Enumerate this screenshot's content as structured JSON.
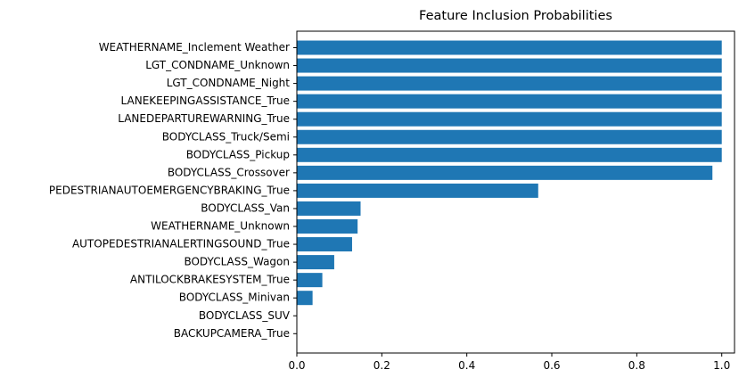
{
  "chart_data": {
    "type": "bar",
    "orientation": "horizontal",
    "title": "Feature Inclusion Probabilities",
    "xlabel": "",
    "ylabel": "",
    "xlim": [
      0,
      1.03
    ],
    "xticks": [
      "0.0",
      "0.2",
      "0.4",
      "0.6",
      "0.8",
      "1.0"
    ],
    "grid": false,
    "bar_color": "#1f77b4",
    "categories": [
      "WEATHERNAME_Inclement Weather",
      "LGT_CONDNAME_Unknown",
      "LGT_CONDNAME_Night",
      "LANEKEEPINGASSISTANCE_True",
      "LANEDEPARTUREWARNING_True",
      "BODYCLASS_Truck/Semi",
      "BODYCLASS_Pickup",
      "BODYCLASS_Crossover",
      "PEDESTRIANAUTOEMERGENCYBRAKING_True",
      "BODYCLASS_Van",
      "WEATHERNAME_Unknown",
      "AUTOPEDESTRIANALERTINGSOUND_True",
      "BODYCLASS_Wagon",
      "ANTILOCKBRAKESYSTEM_True",
      "BODYCLASS_Minivan",
      "BODYCLASS_SUV",
      "BACKUPCAMERA_True"
    ],
    "values": [
      1.0,
      1.0,
      1.0,
      1.0,
      1.0,
      1.0,
      1.0,
      0.978,
      0.568,
      0.15,
      0.143,
      0.13,
      0.088,
      0.06,
      0.037,
      0.0,
      0.0
    ]
  }
}
